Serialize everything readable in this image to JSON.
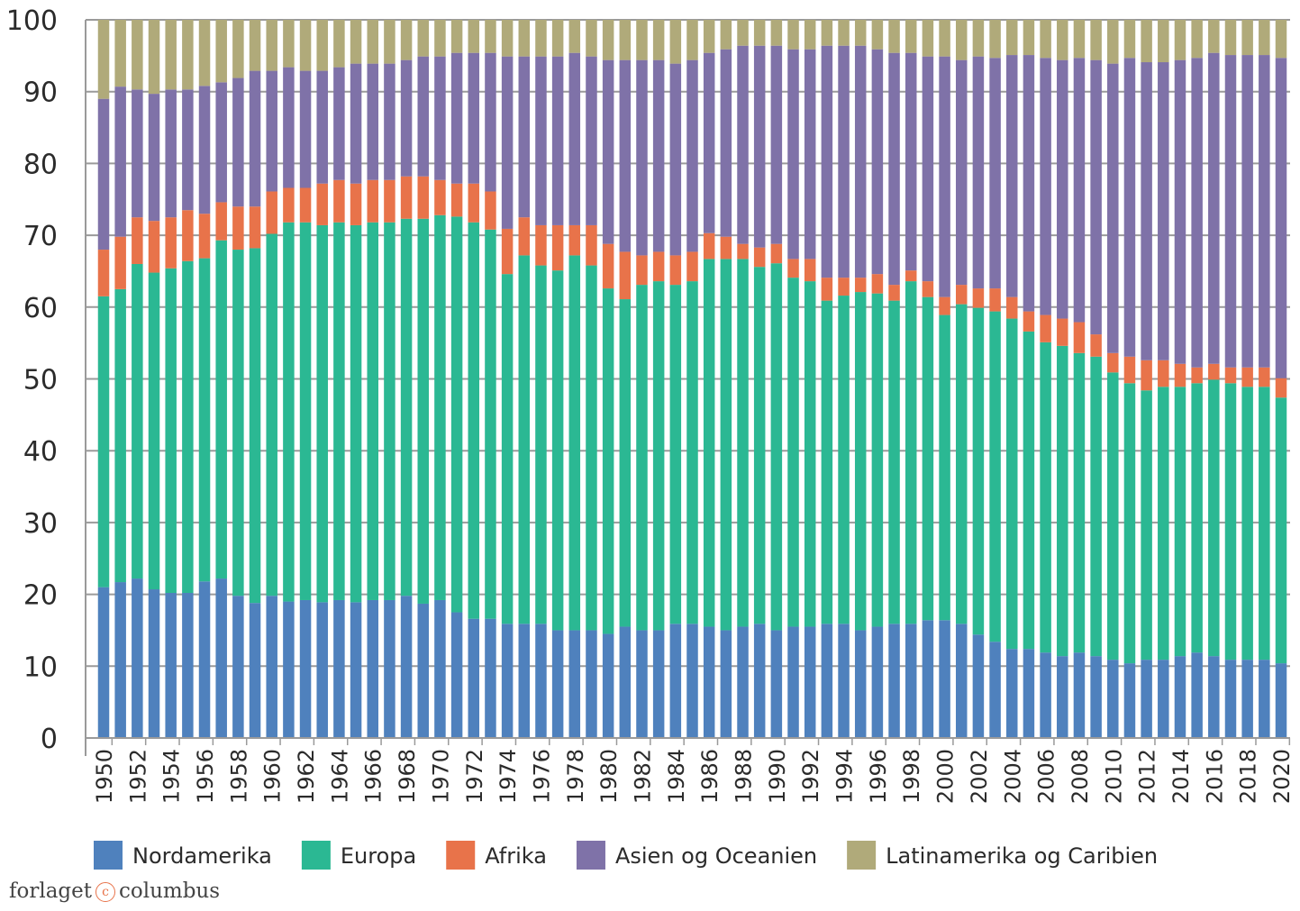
{
  "chart_data": {
    "type": "bar",
    "stacked": true,
    "title": "",
    "xlabel": "",
    "ylabel": "",
    "ylim": [
      0,
      100
    ],
    "yticks": [
      0,
      10,
      20,
      30,
      40,
      50,
      60,
      70,
      80,
      90,
      100
    ],
    "grid": true,
    "legend_position": "bottom",
    "categories": [
      1950,
      1951,
      1952,
      1953,
      1954,
      1955,
      1956,
      1957,
      1958,
      1959,
      1960,
      1961,
      1962,
      1963,
      1964,
      1965,
      1966,
      1967,
      1968,
      1969,
      1970,
      1971,
      1972,
      1973,
      1974,
      1975,
      1976,
      1977,
      1978,
      1979,
      1980,
      1981,
      1982,
      1983,
      1984,
      1985,
      1986,
      1987,
      1988,
      1989,
      1990,
      1991,
      1992,
      1993,
      1994,
      1995,
      1996,
      1997,
      1998,
      1999,
      2000,
      2001,
      2002,
      2003,
      2004,
      2005,
      2006,
      2007,
      2008,
      2009,
      2010,
      2011,
      2012,
      2013,
      2014,
      2015,
      2016,
      2017,
      2018,
      2019,
      2020
    ],
    "series": [
      {
        "name": "Nordamerika",
        "color": "#4f81bd",
        "values": [
          21,
          21.7,
          22.2,
          20.7,
          20.2,
          20.2,
          21.8,
          22.2,
          19.8,
          18.8,
          19.8,
          19,
          19.2,
          18.9,
          19.2,
          18.9,
          19.2,
          19.2,
          19.8,
          18.7,
          19.2,
          17.5,
          16.6,
          16.6,
          15.9,
          15.9,
          15.9,
          15,
          15,
          15,
          14.5,
          15.5,
          15,
          15,
          15.9,
          15.9,
          15.5,
          15,
          15.5,
          15.9,
          15,
          15.5,
          15.5,
          15.9,
          15.9,
          15,
          15.5,
          15.9,
          15.9,
          16.4,
          16.4,
          15.9,
          14.4,
          13.4,
          12.4,
          12.4,
          11.9,
          11.4,
          11.9,
          11.4,
          10.9,
          10.4,
          10.9,
          10.9,
          11.4,
          11.9,
          11.4,
          10.9,
          10.9,
          10.9,
          10.4
        ]
      },
      {
        "name": "Europa",
        "color": "#2bb893",
        "values": [
          40.5,
          40.8,
          43.8,
          44.1,
          45.2,
          46.2,
          45,
          47.1,
          48.2,
          49.4,
          50.4,
          52.8,
          52.6,
          52.5,
          52.6,
          52.5,
          52.6,
          52.6,
          52.5,
          53.6,
          53.6,
          55.1,
          55.2,
          54.2,
          48.7,
          51.3,
          49.9,
          50.1,
          52.2,
          50.8,
          48.1,
          45.6,
          48.1,
          48.6,
          47.2,
          47.7,
          51.2,
          51.7,
          51.2,
          49.7,
          51.1,
          48.6,
          48.1,
          45,
          45.7,
          47.1,
          46.4,
          45,
          47.7,
          45,
          42.5,
          44.5,
          45.5,
          46,
          46,
          44.2,
          43.2,
          43.2,
          41.7,
          41.7,
          40,
          39,
          37.5,
          38,
          37.5,
          37.5,
          38.5,
          38.5,
          38,
          38,
          37
        ]
      },
      {
        "name": "Afrika",
        "color": "#e8734a",
        "values": [
          6.5,
          7.3,
          6.5,
          7.2,
          7.1,
          7.1,
          6.2,
          5.3,
          6,
          5.8,
          5.9,
          4.8,
          4.8,
          5.8,
          5.9,
          5.8,
          5.9,
          5.9,
          5.9,
          5.9,
          4.9,
          4.6,
          5.4,
          5.3,
          6.3,
          5.3,
          5.6,
          6.3,
          4.2,
          5.6,
          6.2,
          6.6,
          4.1,
          4.1,
          4.1,
          4.1,
          3.6,
          3.1,
          2.1,
          2.7,
          2.7,
          2.6,
          3.1,
          3.2,
          2.5,
          2,
          2.7,
          2.2,
          1.5,
          2.2,
          2.5,
          2.7,
          2.7,
          3.2,
          3,
          2.8,
          3.8,
          3.8,
          4.3,
          3.1,
          2.7,
          3.7,
          4.2,
          3.7,
          3.2,
          2.2,
          2.2,
          2.2,
          2.7,
          2.7,
          2.7
        ]
      },
      {
        "name": "Asien og Oceanien",
        "color": "#7f72a8",
        "values": [
          21,
          20.9,
          17.8,
          17.7,
          17.8,
          16.8,
          17.8,
          16.7,
          17.9,
          18.9,
          16.8,
          16.8,
          16.3,
          15.7,
          15.7,
          16.7,
          16.2,
          16.2,
          16.2,
          16.7,
          17.2,
          18.2,
          18.2,
          19.3,
          24,
          22.4,
          23.5,
          23.5,
          24,
          23.5,
          25.6,
          26.7,
          27.2,
          26.7,
          26.7,
          26.7,
          25.1,
          26.1,
          27.6,
          28.1,
          27.6,
          29.2,
          29.2,
          32.3,
          32.3,
          32.3,
          31.3,
          32.3,
          30.3,
          31.3,
          33.5,
          31.3,
          32.3,
          32.1,
          33.7,
          35.7,
          35.8,
          36,
          36.8,
          38.2,
          40.3,
          41.6,
          41.5,
          41.5,
          42.3,
          43.1,
          43.3,
          43.5,
          43.5,
          43.5,
          44.6
        ]
      },
      {
        "name": "Latinamerika og Caribien",
        "color": "#b0aa7a",
        "values": [
          11,
          9.3,
          9.7,
          10.3,
          9.7,
          9.7,
          9.2,
          8.7,
          8.1,
          7.1,
          7.1,
          6.6,
          7.1,
          7.1,
          6.6,
          6.1,
          6.1,
          6.1,
          5.6,
          5.1,
          5.1,
          4.6,
          4.6,
          4.6,
          5.1,
          5.1,
          5.1,
          5.1,
          4.6,
          5.1,
          5.6,
          5.6,
          5.6,
          5.6,
          6.1,
          5.6,
          4.6,
          4.1,
          3.6,
          3.6,
          3.6,
          4.1,
          4.1,
          3.6,
          3.6,
          3.6,
          4.1,
          4.6,
          4.6,
          5.1,
          5.1,
          5.6,
          5.1,
          5.3,
          4.9,
          4.9,
          5.3,
          5.6,
          5.3,
          5.6,
          6.1,
          5.3,
          5.9,
          5.9,
          5.6,
          5.3,
          4.6,
          4.9,
          4.9,
          4.9,
          5.3
        ]
      }
    ]
  },
  "logo": {
    "text_left": "forlaget",
    "mark": "c",
    "text_right": "columbus"
  }
}
